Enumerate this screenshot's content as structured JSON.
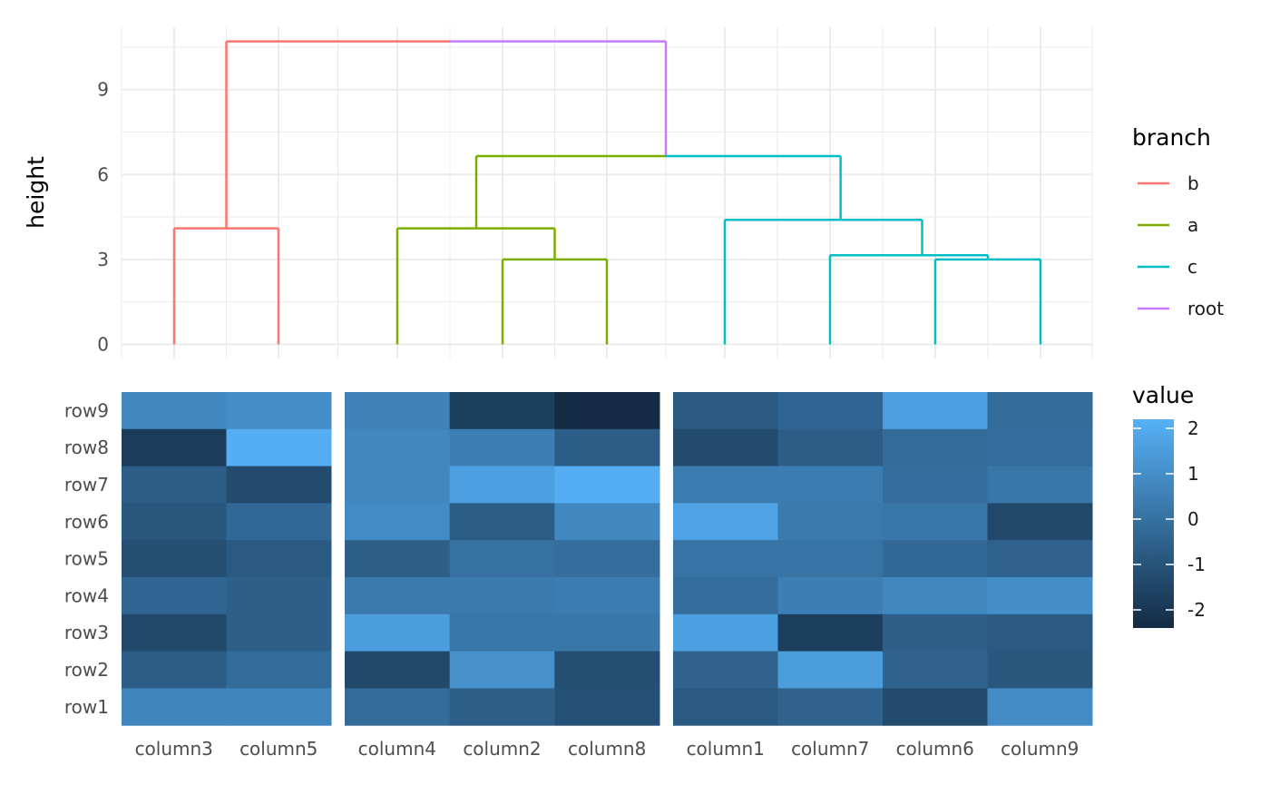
{
  "chart_data": [
    {
      "type": "dendrogram",
      "ylabel": "height",
      "yticks": [
        0,
        3,
        6,
        9
      ],
      "ylim": [
        -0.5,
        11.2
      ],
      "leaf_order": [
        "column3",
        "column5",
        "column4",
        "column2",
        "column8",
        "column1",
        "column7",
        "column6",
        "column9"
      ],
      "segments": [
        {
          "branch": "b",
          "x1": 1,
          "y1": 0,
          "x2": 1,
          "y2": 4.1
        },
        {
          "branch": "b",
          "x1": 2,
          "y1": 0,
          "x2": 2,
          "y2": 4.1
        },
        {
          "branch": "b",
          "x1": 1,
          "y1": 4.1,
          "x2": 2,
          "y2": 4.1
        },
        {
          "branch": "b",
          "x1": 1.5,
          "y1": 4.1,
          "x2": 1.5,
          "y2": 10.7
        },
        {
          "branch": "b",
          "x1": 1.5,
          "y1": 10.7,
          "x2": 3.5,
          "y2": 10.7
        },
        {
          "branch": "root",
          "x1": 3.5,
          "y1": 10.7,
          "x2": 5.5,
          "y2": 10.7
        },
        {
          "branch": "root",
          "x1": 5.5,
          "y1": 6.65,
          "x2": 5.5,
          "y2": 10.7
        },
        {
          "branch": "a",
          "x1": 3,
          "y1": 4.1,
          "x2": 3,
          "y2": 0
        },
        {
          "branch": "a",
          "x1": 4,
          "y1": 0,
          "x2": 4,
          "y2": 3
        },
        {
          "branch": "a",
          "x1": 5,
          "y1": 0,
          "x2": 5,
          "y2": 3
        },
        {
          "branch": "a",
          "x1": 4,
          "y1": 3,
          "x2": 5,
          "y2": 3
        },
        {
          "branch": "a",
          "x1": 4.5,
          "y1": 3,
          "x2": 4.5,
          "y2": 4.1
        },
        {
          "branch": "a",
          "x1": 3,
          "y1": 4.1,
          "x2": 4.5,
          "y2": 4.1
        },
        {
          "branch": "a",
          "x1": 3.75,
          "y1": 4.1,
          "x2": 3.75,
          "y2": 6.65
        },
        {
          "branch": "a",
          "x1": 3.75,
          "y1": 6.65,
          "x2": 5.5,
          "y2": 6.65
        },
        {
          "branch": "c",
          "x1": 5.5,
          "y1": 6.65,
          "x2": 7.1,
          "y2": 6.65
        },
        {
          "branch": "c",
          "x1": 7.1,
          "y1": 4.4,
          "x2": 7.1,
          "y2": 6.65
        },
        {
          "branch": "c",
          "x1": 6,
          "y1": 4.4,
          "x2": 7.875,
          "y2": 4.4
        },
        {
          "branch": "c",
          "x1": 6,
          "y1": 0,
          "x2": 6,
          "y2": 4.4
        },
        {
          "branch": "c",
          "x1": 7.875,
          "y1": 3.15,
          "x2": 7.875,
          "y2": 4.4
        },
        {
          "branch": "c",
          "x1": 7,
          "y1": 3.15,
          "x2": 8.5,
          "y2": 3.15
        },
        {
          "branch": "c",
          "x1": 7,
          "y1": 0,
          "x2": 7,
          "y2": 3.15
        },
        {
          "branch": "c",
          "x1": 8.5,
          "y1": 3,
          "x2": 8.5,
          "y2": 3.15
        },
        {
          "branch": "c",
          "x1": 8,
          "y1": 3,
          "x2": 9,
          "y2": 3
        },
        {
          "branch": "c",
          "x1": 8,
          "y1": 0,
          "x2": 8,
          "y2": 3
        },
        {
          "branch": "c",
          "x1": 9,
          "y1": 0,
          "x2": 9,
          "y2": 3
        }
      ],
      "legend": {
        "title": "branch",
        "items": [
          {
            "label": "b",
            "color": "#F8766D"
          },
          {
            "label": "a",
            "color": "#7CAE00"
          },
          {
            "label": "c",
            "color": "#00BFC4"
          },
          {
            "label": "root",
            "color": "#C77CFF"
          }
        ],
        "placement": "right"
      }
    },
    {
      "type": "heatmap",
      "rows": [
        "row9",
        "row8",
        "row7",
        "row6",
        "row5",
        "row4",
        "row3",
        "row2",
        "row1"
      ],
      "column_groups": [
        [
          "column3",
          "column5"
        ],
        [
          "column4",
          "column2",
          "column8"
        ],
        [
          "column1",
          "column7",
          "column6",
          "column9"
        ]
      ],
      "values": [
        [
          0.8,
          1.0,
          0.6,
          -1.7,
          -2.4,
          -0.8,
          -0.4,
          1.6,
          -0.2
        ],
        [
          -1.8,
          2.1,
          0.8,
          0.5,
          -0.7,
          -1.3,
          -0.7,
          -0.2,
          -0.1
        ],
        [
          -0.7,
          -1.3,
          0.8,
          1.6,
          2.1,
          0.4,
          0.4,
          -0.1,
          0.2
        ],
        [
          -0.9,
          -0.3,
          0.9,
          -0.7,
          0.8,
          1.7,
          0.3,
          0.2,
          -1.4
        ],
        [
          -1.2,
          -0.8,
          -0.6,
          0.0,
          -0.1,
          0.1,
          0.1,
          -0.3,
          -0.5
        ],
        [
          -0.4,
          -0.6,
          0.3,
          0.3,
          0.4,
          -0.1,
          0.5,
          0.8,
          1.0
        ],
        [
          -1.4,
          -0.6,
          1.5,
          0.2,
          0.2,
          1.6,
          -1.7,
          -0.6,
          -0.8
        ],
        [
          -0.7,
          -0.2,
          -1.4,
          1.1,
          -1.2,
          -0.5,
          1.5,
          -0.5,
          -0.9
        ],
        [
          0.7,
          0.7,
          -0.2,
          -0.6,
          -1.1,
          -0.8,
          -0.5,
          -1.3,
          0.9
        ]
      ],
      "legend": {
        "title": "value",
        "ticks": [
          2,
          1,
          0,
          -1,
          -2
        ],
        "range": [
          -2.4,
          2.2
        ],
        "color_low": "#132B43",
        "color_high": "#56B1F7",
        "placement": "right"
      }
    }
  ]
}
